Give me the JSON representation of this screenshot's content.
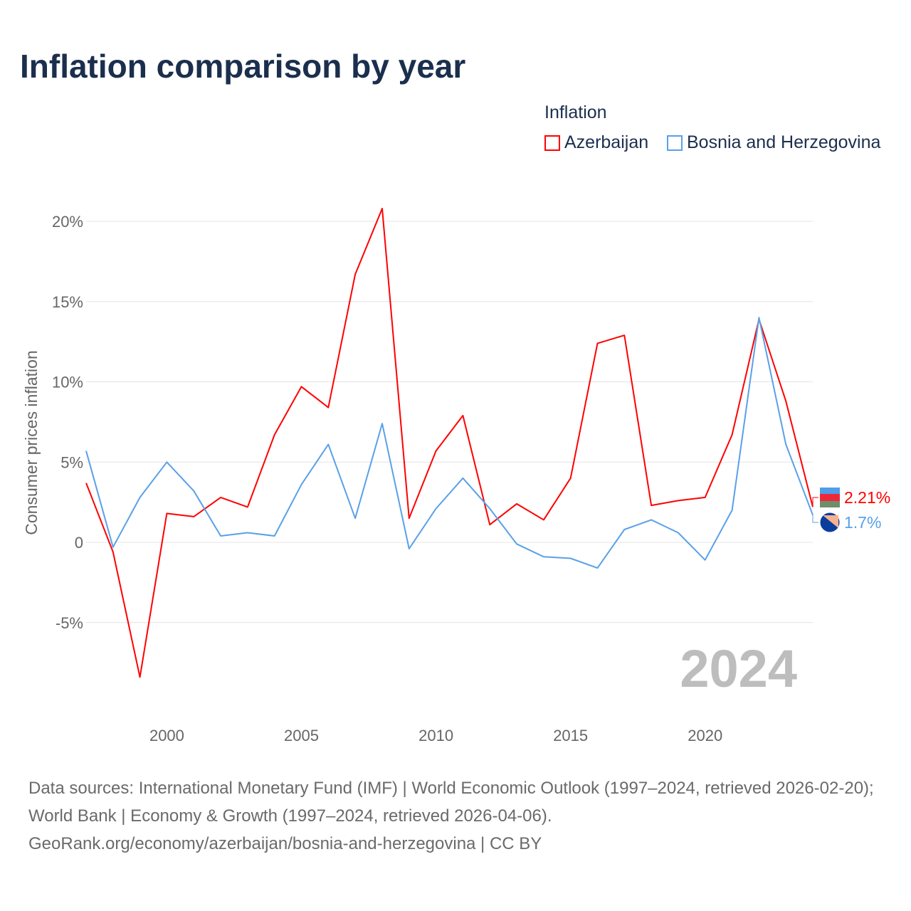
{
  "title": "Inflation comparison by year",
  "legend": {
    "title": "Inflation",
    "items": [
      {
        "label": "Azerbaijan",
        "color": "#ff0000"
      },
      {
        "label": "Bosnia and Herzegovina",
        "color": "#5aa0e8"
      }
    ]
  },
  "chart_data": {
    "type": "line",
    "title": "Inflation comparison by year",
    "xlabel": "",
    "ylabel": "Consumer prices inflation",
    "x": [
      1997,
      1998,
      1999,
      2000,
      2001,
      2002,
      2003,
      2004,
      2005,
      2006,
      2007,
      2008,
      2009,
      2010,
      2011,
      2012,
      2013,
      2014,
      2015,
      2016,
      2017,
      2018,
      2019,
      2020,
      2021,
      2022,
      2023,
      2024
    ],
    "xlim": [
      1997,
      2024
    ],
    "ylim": [
      -10,
      22
    ],
    "xticks": [
      2000,
      2005,
      2010,
      2015,
      2020
    ],
    "xtick_labels": [
      "2000",
      "2005",
      "2010",
      "2015",
      "2020"
    ],
    "yticks": [
      -5,
      0,
      5,
      10,
      15,
      20
    ],
    "ytick_labels": [
      "-5%",
      "0",
      "5%",
      "10%",
      "15%",
      "20%"
    ],
    "grid": true,
    "legend_position": "top-right",
    "year_watermark": "2024",
    "series": [
      {
        "name": "Azerbaijan",
        "color": "#ff0000",
        "end_label": "2.21%",
        "values": [
          3.7,
          -0.6,
          -8.4,
          1.8,
          1.6,
          2.8,
          2.2,
          6.7,
          9.7,
          8.4,
          16.7,
          20.8,
          1.5,
          5.7,
          7.9,
          1.1,
          2.4,
          1.4,
          4.0,
          12.4,
          12.9,
          2.3,
          2.6,
          2.8,
          6.7,
          13.9,
          8.8,
          2.21
        ]
      },
      {
        "name": "Bosnia and Herzegovina",
        "color": "#5aa0e8",
        "end_label": "1.7%",
        "values": [
          5.7,
          -0.3,
          2.8,
          5.0,
          3.2,
          0.4,
          0.6,
          0.4,
          3.6,
          6.1,
          1.5,
          7.4,
          -0.4,
          2.1,
          4.0,
          2.1,
          -0.1,
          -0.9,
          -1.0,
          -1.6,
          0.8,
          1.4,
          0.6,
          -1.1,
          2.0,
          14.0,
          6.1,
          1.7
        ]
      }
    ]
  },
  "footer": {
    "line1": "Data sources: International Monetary Fund (IMF) | World Economic Outlook (1997–2024, retrieved 2026-02-20); World Bank | Economy & Growth (1997–2024, retrieved 2026-04-06).",
    "line2": "GeoRank.org/economy/azerbaijan/bosnia-and-herzegovina | CC BY"
  }
}
